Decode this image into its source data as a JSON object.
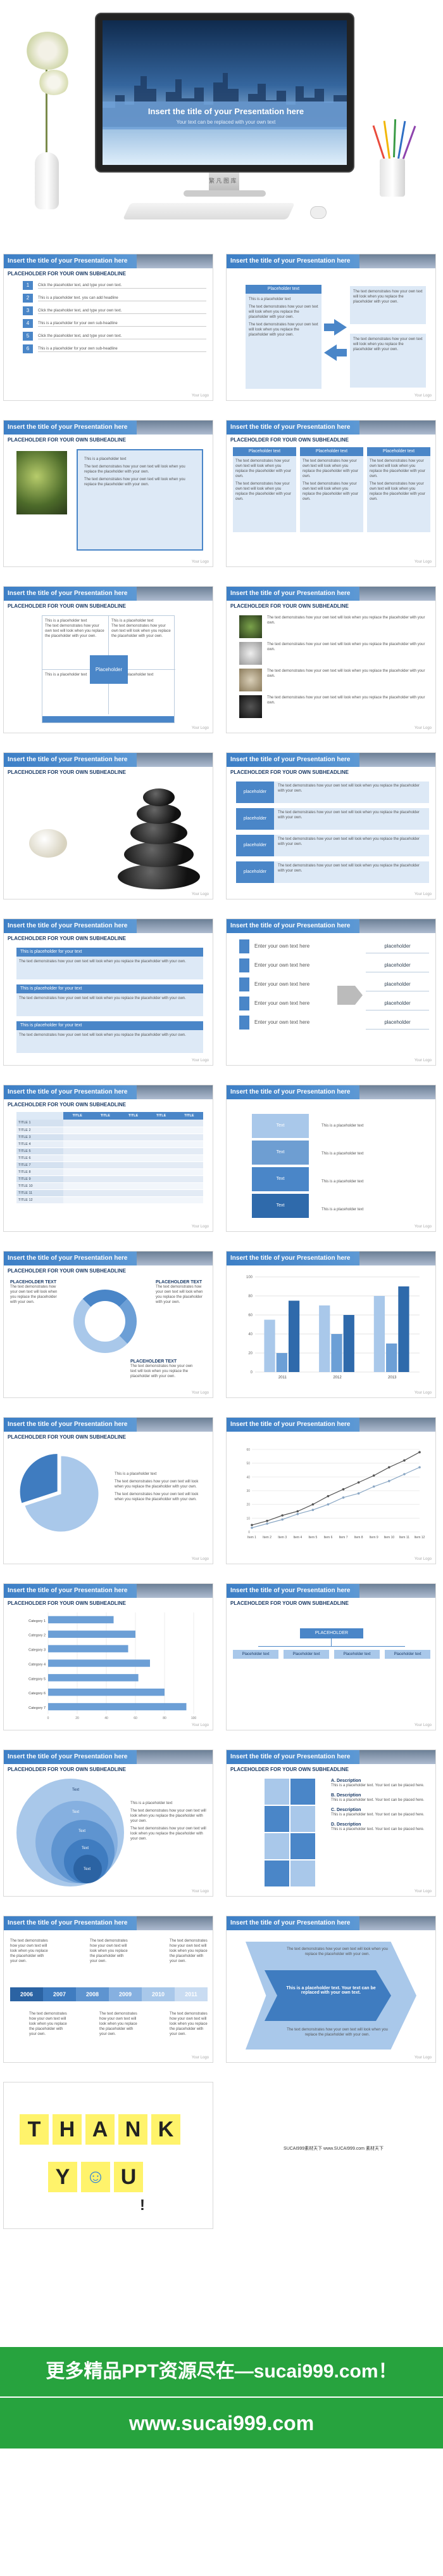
{
  "hero": {
    "title": "Insert the title of your Presentation here",
    "subtitle": "Your text can be replaced with your own text",
    "brand": "繁 凡 图 库"
  },
  "common": {
    "slide_title": "Insert the title of your Presentation here",
    "subheadline": "PLACEHOLDER FOR YOUR OWN SUBHEADLINE",
    "logo": "Your Logo",
    "bullet": "This is a placeholder text",
    "bullet_long": "The text demonstrates how your own text will look when you replace the placeholder with your own.",
    "placeholder": "Placeholder text",
    "placeholder_short": "placeholder",
    "enter_text": "Enter your own text here"
  },
  "slide1": {
    "items": [
      {
        "num": "1",
        "text": "Click the placeholder text, and type your own text."
      },
      {
        "num": "2",
        "text": "This is a placeholder text. you can add headline"
      },
      {
        "num": "3",
        "text": "Click the placeholder text, and type your own text."
      },
      {
        "num": "4",
        "text": "This is a placeholder for your own sub-headline"
      },
      {
        "num": "5",
        "text": "Click the placeholder text, and type your own text."
      },
      {
        "num": "6",
        "text": "This is a placeholder for your own sub-headline"
      }
    ]
  },
  "slide4": {
    "center_label": "Placeholder"
  },
  "slide9": {
    "title_box": "This is placeholder for your text",
    "rows": [
      "Enter your own text here",
      "Enter your own text here",
      "Enter your own text here",
      "Enter your own text here",
      "Enter your own text here"
    ],
    "right": [
      "placeholder",
      "placeholder",
      "placeholder",
      "placeholder",
      "placeholder"
    ]
  },
  "slide11": {
    "headers": [
      "",
      "TITLE",
      "TITLE",
      "TITLE",
      "TITLE",
      "TITLE"
    ],
    "rows": [
      "TITLE 1",
      "TITLE 2",
      "TITLE 3",
      "TITLE 4",
      "TITLE 5",
      "TITLE 6",
      "TITLE 7",
      "TITLE 8",
      "TITLE 9",
      "TITLE 10",
      "TITLE 11",
      "TITLE 12"
    ]
  },
  "slide12": {
    "cube_label": "Text"
  },
  "slide13": {
    "left_title": "PLACEHOLDER TEXT",
    "right_title": "PLACEHOLDER TEXT",
    "bottom_title": "PLACEHOLDER TEXT"
  },
  "chart_data": [
    {
      "type": "bar",
      "categories": [
        "2011",
        "2012",
        "2013"
      ],
      "series": [
        {
          "values": [
            55,
            70,
            80
          ]
        },
        {
          "values": [
            20,
            40,
            30
          ]
        },
        {
          "values": [
            75,
            60,
            90
          ]
        }
      ],
      "ylim": [
        0,
        100
      ]
    },
    {
      "type": "pie",
      "values": [
        70,
        30
      ]
    },
    {
      "type": "line",
      "categories": [
        "Item 1",
        "Item 2",
        "Item 3",
        "Item 4",
        "Item 5",
        "Item 6",
        "Item 7",
        "Item 8",
        "Item 9",
        "Item 10",
        "Item 11",
        "Item 12"
      ],
      "series": [
        {
          "values": [
            5,
            8,
            12,
            15,
            20,
            26,
            31,
            36,
            41,
            47,
            52,
            58
          ]
        },
        {
          "values": [
            3,
            6,
            9,
            13,
            16,
            20,
            25,
            28,
            33,
            37,
            42,
            47
          ]
        }
      ]
    },
    {
      "type": "bar",
      "categories": [
        "Category 1",
        "Category 2",
        "Category 3",
        "Category 4",
        "Category 5",
        "Category 6",
        "Category 7"
      ],
      "values": [
        45,
        60,
        55,
        70,
        62,
        80,
        95
      ]
    }
  ],
  "slide18": {
    "top": "PLACEHOLDER",
    "children": [
      "Placeholder text",
      "Placeholder text",
      "Placeholder text",
      "Placeholder text"
    ]
  },
  "slide19": {
    "labels": [
      "Text",
      "Text",
      "Text",
      "Text",
      "Text"
    ]
  },
  "slide20": {
    "items": [
      {
        "n": "A",
        "title": "Description",
        "text": "This is a placeholder text. Your text can be placed here."
      },
      {
        "n": "B",
        "title": "Description",
        "text": "This is a placeholder text. Your text can be placed here."
      },
      {
        "n": "C",
        "title": "Description",
        "text": "This is a placeholder text. Your text can be placed here."
      },
      {
        "n": "D",
        "title": "Description",
        "text": "This is a placeholder text. Your text can be placed here."
      }
    ]
  },
  "slide21": {
    "years": [
      "2006",
      "2007",
      "2008",
      "2009",
      "2010",
      "2011"
    ]
  },
  "slide22": {
    "middle": "This is a placeholder text. Your text can be replaced with your own text."
  },
  "thanks": {
    "letters": [
      "T",
      "H",
      "A",
      "N",
      "K"
    ],
    "you": [
      "Y",
      "☺",
      "U"
    ],
    "mark": "!",
    "caption": "SUCAI999素材天下 www.SUCAI999.com 素材天下"
  },
  "promo": {
    "line1": "更多精品PPT资源尽在—sucai999.com！",
    "line2": "www.sucai999.com"
  }
}
